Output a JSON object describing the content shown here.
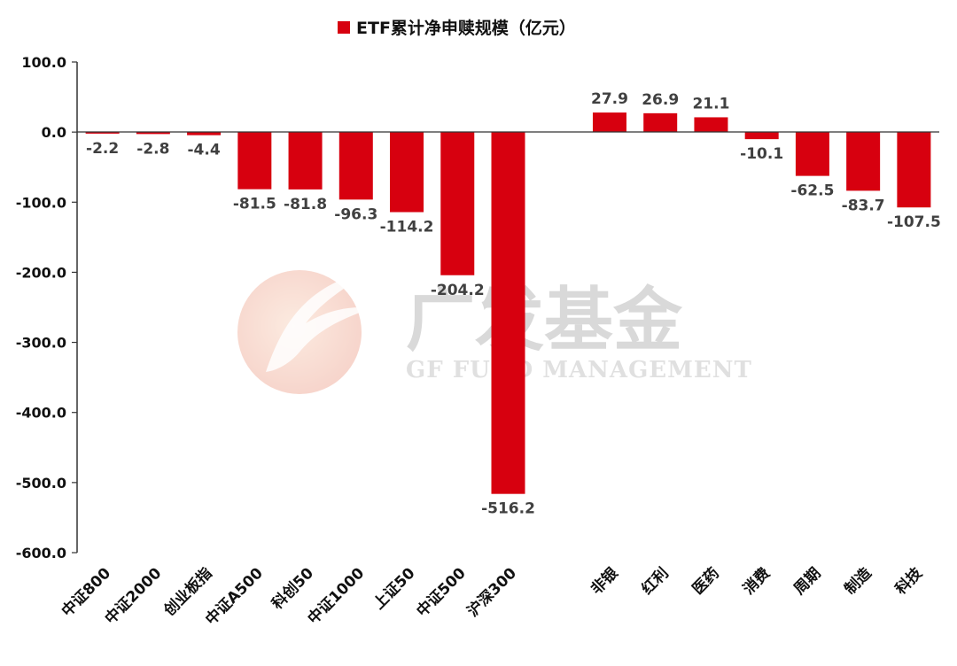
{
  "chart_data": {
    "type": "bar",
    "title": "",
    "legend": [
      {
        "name": "ETF累计净申赎规模（亿元）",
        "color": "#d7000f"
      }
    ],
    "legend_position": "top-center",
    "categories": [
      "中证800",
      "中证2000",
      "创业板指",
      "中证A500",
      "科创50",
      "中证1000",
      "上证50",
      "中证500",
      "沪深300",
      "",
      "非银",
      "红利",
      "医药",
      "消费",
      "周期",
      "制造",
      "科技"
    ],
    "series": [
      {
        "name": "ETF累计净申赎规模（亿元）",
        "color": "#d7000f",
        "values": [
          -2.2,
          -2.8,
          -4.4,
          -81.5,
          -81.8,
          -96.3,
          -114.2,
          -204.2,
          -516.2,
          null,
          27.9,
          26.9,
          21.1,
          -10.1,
          -62.5,
          -83.7,
          -107.5
        ],
        "labels": [
          "-2.2",
          "-2.8",
          "-4.4",
          "-81.5",
          "-81.8",
          "-96.3",
          "-114.2",
          "-204.2",
          "-516.2",
          "",
          "27.9",
          "26.9",
          "21.1",
          "-10.1",
          "-62.5",
          "-83.7",
          "-107.5"
        ]
      }
    ],
    "ylim": [
      -600,
      100
    ],
    "y_ticks": [
      100,
      0,
      -100,
      -200,
      -300,
      -400,
      -500,
      -600
    ],
    "y_tick_labels": [
      "100.0",
      "0.0",
      "-100.0",
      "-200.0",
      "-300.0",
      "-400.0",
      "-500.0",
      "-600.0"
    ],
    "grid": false,
    "xlabel": "",
    "ylabel": ""
  },
  "watermark": {
    "cn": "广发基金",
    "en": "GF FUND MANAGEMENT"
  }
}
